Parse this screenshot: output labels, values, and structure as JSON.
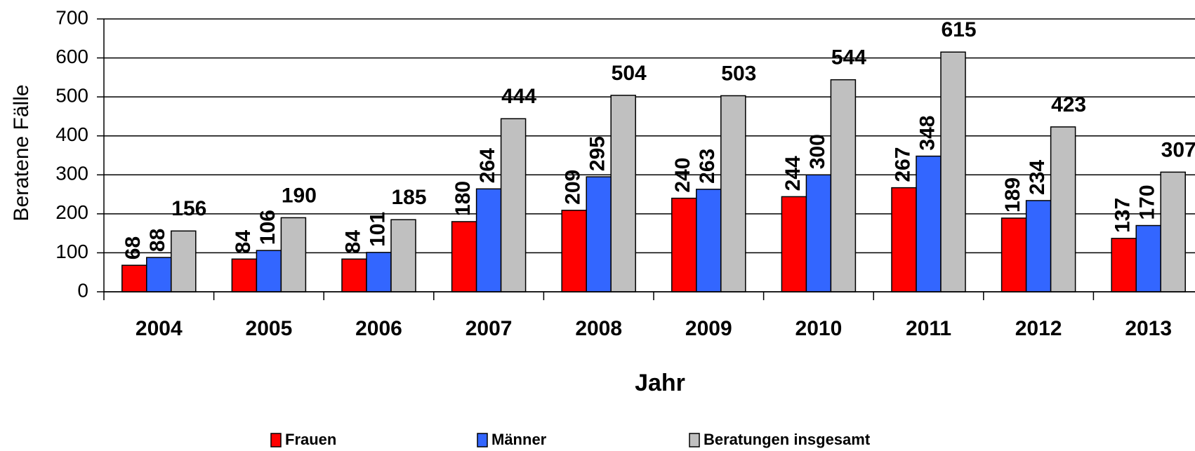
{
  "chart_data": {
    "type": "bar",
    "y_label": "Beratene Fälle",
    "x_label": "Jahr",
    "categories": [
      "2004",
      "2005",
      "2006",
      "2007",
      "2008",
      "2009",
      "2010",
      "2011",
      "2012",
      "2013"
    ],
    "series": [
      {
        "name": "Frauen",
        "color": "#ff0000",
        "values": [
          68,
          84,
          84,
          180,
          209,
          240,
          244,
          267,
          189,
          137
        ]
      },
      {
        "name": "Männer",
        "color": "#3366ff",
        "values": [
          88,
          106,
          101,
          264,
          295,
          263,
          300,
          348,
          234,
          170
        ]
      },
      {
        "name": "Beratungen insgesamt",
        "color": "#c0c0c0",
        "values": [
          156,
          190,
          185,
          444,
          504,
          503,
          544,
          615,
          423,
          307
        ]
      }
    ],
    "ylim": [
      0,
      700
    ],
    "yticks": [
      0,
      100,
      200,
      300,
      400,
      500,
      600,
      700
    ],
    "grid": true
  }
}
